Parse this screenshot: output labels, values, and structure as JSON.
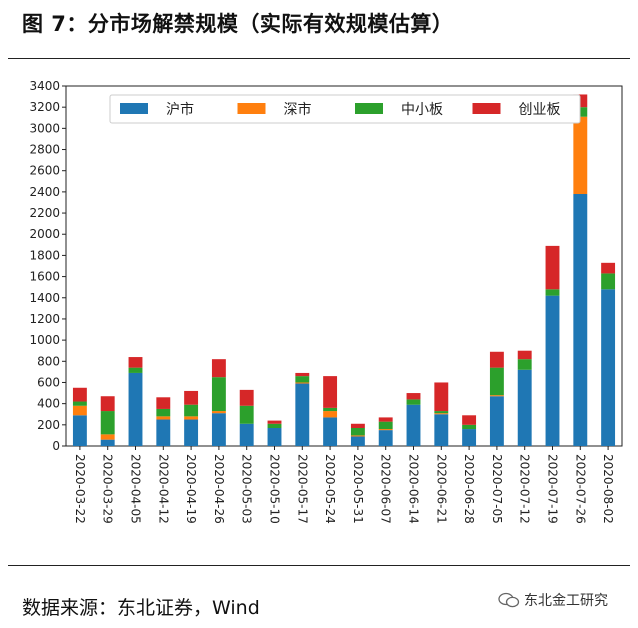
{
  "figure_title": "图 7：分市场解禁规模（实际有效规模估算）",
  "source_text": "数据来源：东北证券，Wind",
  "watermark_text": "东北金工研究",
  "chart_data": {
    "type": "bar",
    "stacked": true,
    "title": "",
    "xlabel": "",
    "ylabel": "",
    "ylim": [
      0,
      3400
    ],
    "yticks": [
      0,
      200,
      400,
      600,
      800,
      1000,
      1200,
      1400,
      1600,
      1800,
      2000,
      2200,
      2400,
      2600,
      2800,
      3000,
      3200,
      3400
    ],
    "grid": false,
    "legend_position": "top",
    "categories": [
      "2020-03-22",
      "2020-03-29",
      "2020-04-05",
      "2020-04-12",
      "2020-04-19",
      "2020-04-26",
      "2020-05-03",
      "2020-05-10",
      "2020-05-17",
      "2020-05-24",
      "2020-05-31",
      "2020-06-07",
      "2020-06-14",
      "2020-06-21",
      "2020-06-28",
      "2020-07-05",
      "2020-07-12",
      "2020-07-19",
      "2020-07-26",
      "2020-08-02"
    ],
    "series": [
      {
        "name": "沪市",
        "color": "#1f77b4",
        "values": [
          290,
          60,
          690,
          250,
          250,
          310,
          210,
          170,
          590,
          270,
          90,
          150,
          390,
          300,
          160,
          470,
          720,
          1420,
          2380,
          1480
        ]
      },
      {
        "name": "深市",
        "color": "#ff7f0e",
        "values": [
          90,
          50,
          0,
          30,
          30,
          20,
          0,
          0,
          10,
          60,
          10,
          10,
          0,
          10,
          0,
          10,
          0,
          0,
          730,
          0
        ]
      },
      {
        "name": "中小板",
        "color": "#2ca02c",
        "values": [
          40,
          220,
          50,
          70,
          110,
          320,
          170,
          40,
          60,
          30,
          70,
          70,
          50,
          20,
          40,
          260,
          100,
          60,
          90,
          150
        ]
      },
      {
        "name": "创业板",
        "color": "#d62728",
        "values": [
          130,
          140,
          100,
          110,
          130,
          170,
          150,
          30,
          30,
          300,
          40,
          40,
          60,
          270,
          90,
          150,
          80,
          410,
          120,
          100
        ]
      }
    ]
  }
}
